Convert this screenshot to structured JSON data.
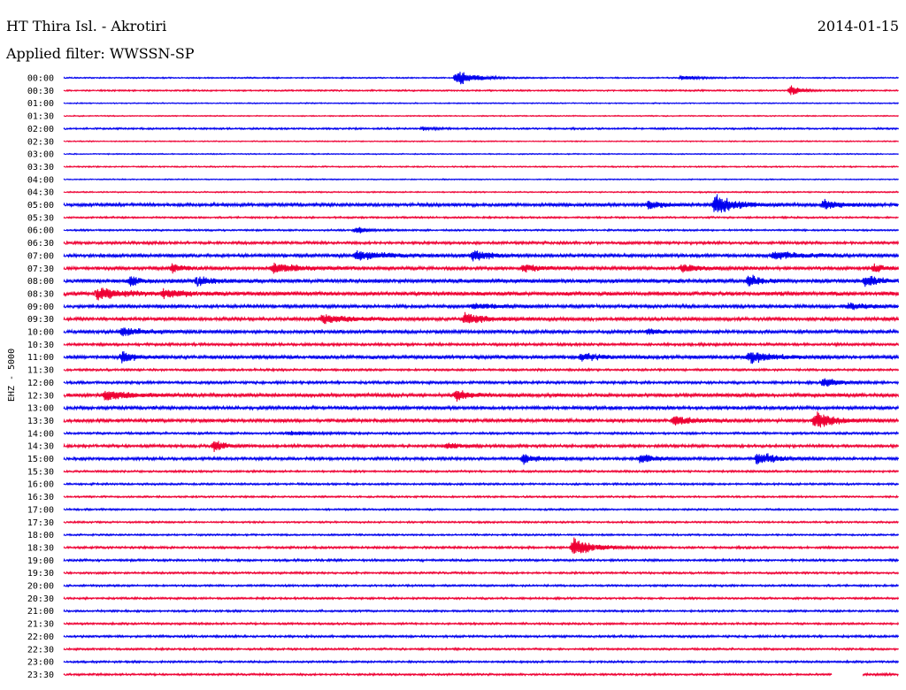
{
  "header": {
    "station": "HT Thira Isl. - Akrotiri",
    "date": "2014-01-15",
    "filter": "Applied filter: WWSSN-SP"
  },
  "colors": {
    "even": "#0000ee",
    "odd": "#ee0033"
  },
  "chart_data": {
    "type": "line",
    "channel_label": "EHZ - 5000",
    "rows": [
      {
        "time": "00:00",
        "noise": 0.6,
        "bursts": [
          {
            "t": 0.47,
            "a": 8,
            "d": 0.05
          },
          {
            "t": 0.74,
            "a": 2.5,
            "d": 0.04
          }
        ]
      },
      {
        "time": "00:30",
        "noise": 0.7,
        "bursts": [
          {
            "t": 0.87,
            "a": 5,
            "d": 0.03
          }
        ]
      },
      {
        "time": "01:00",
        "noise": 0.5,
        "bursts": []
      },
      {
        "time": "01:30",
        "noise": 0.5,
        "bursts": []
      },
      {
        "time": "02:00",
        "noise": 0.8,
        "bursts": [
          {
            "t": 0.43,
            "a": 2,
            "d": 0.03
          }
        ]
      },
      {
        "time": "02:30",
        "noise": 0.5,
        "bursts": []
      },
      {
        "time": "03:00",
        "noise": 0.5,
        "bursts": []
      },
      {
        "time": "03:30",
        "noise": 0.6,
        "bursts": []
      },
      {
        "time": "04:00",
        "noise": 0.5,
        "bursts": []
      },
      {
        "time": "04:30",
        "noise": 0.6,
        "bursts": []
      },
      {
        "time": "05:00",
        "noise": 1.5,
        "bursts": [
          {
            "t": 0.7,
            "a": 5,
            "d": 0.04
          },
          {
            "t": 0.78,
            "a": 11,
            "d": 0.05
          },
          {
            "t": 0.91,
            "a": 5,
            "d": 0.04
          }
        ]
      },
      {
        "time": "05:30",
        "noise": 0.8,
        "bursts": []
      },
      {
        "time": "06:00",
        "noise": 0.8,
        "bursts": [
          {
            "t": 0.35,
            "a": 4,
            "d": 0.03
          }
        ]
      },
      {
        "time": "06:30",
        "noise": 1.2,
        "bursts": []
      },
      {
        "time": "07:00",
        "noise": 1.5,
        "bursts": [
          {
            "t": 0.35,
            "a": 5,
            "d": 0.08
          },
          {
            "t": 0.49,
            "a": 6,
            "d": 0.04
          },
          {
            "t": 0.85,
            "a": 4,
            "d": 0.08
          }
        ]
      },
      {
        "time": "07:30",
        "noise": 1.5,
        "bursts": [
          {
            "t": 0.13,
            "a": 5,
            "d": 0.03
          },
          {
            "t": 0.25,
            "a": 5,
            "d": 0.08
          },
          {
            "t": 0.55,
            "a": 4,
            "d": 0.05
          },
          {
            "t": 0.74,
            "a": 4,
            "d": 0.05
          },
          {
            "t": 0.97,
            "a": 4,
            "d": 0.03
          }
        ]
      },
      {
        "time": "08:00",
        "noise": 1.8,
        "bursts": [
          {
            "t": 0.08,
            "a": 6,
            "d": 0.02
          },
          {
            "t": 0.16,
            "a": 6,
            "d": 0.03
          },
          {
            "t": 0.82,
            "a": 7,
            "d": 0.03
          },
          {
            "t": 0.96,
            "a": 7,
            "d": 0.03
          }
        ]
      },
      {
        "time": "08:30",
        "noise": 1.8,
        "bursts": [
          {
            "t": 0.04,
            "a": 6,
            "d": 0.07
          },
          {
            "t": 0.12,
            "a": 4,
            "d": 0.06
          }
        ]
      },
      {
        "time": "09:00",
        "noise": 1.5,
        "bursts": [
          {
            "t": 0.49,
            "a": 3,
            "d": 0.06
          },
          {
            "t": 0.94,
            "a": 3,
            "d": 0.06
          }
        ]
      },
      {
        "time": "09:30",
        "noise": 1.5,
        "bursts": [
          {
            "t": 0.31,
            "a": 5,
            "d": 0.07
          },
          {
            "t": 0.48,
            "a": 6,
            "d": 0.05
          }
        ]
      },
      {
        "time": "10:00",
        "noise": 1.5,
        "bursts": [
          {
            "t": 0.07,
            "a": 4,
            "d": 0.06
          },
          {
            "t": 0.7,
            "a": 3,
            "d": 0.03
          }
        ]
      },
      {
        "time": "10:30",
        "noise": 1.2,
        "bursts": []
      },
      {
        "time": "11:00",
        "noise": 1.6,
        "bursts": [
          {
            "t": 0.07,
            "a": 6,
            "d": 0.03
          },
          {
            "t": 0.62,
            "a": 5,
            "d": 0.04
          },
          {
            "t": 0.82,
            "a": 6,
            "d": 0.06
          }
        ]
      },
      {
        "time": "11:30",
        "noise": 1.0,
        "bursts": []
      },
      {
        "time": "12:00",
        "noise": 1.2,
        "bursts": [
          {
            "t": 0.91,
            "a": 5,
            "d": 0.04
          }
        ]
      },
      {
        "time": "12:30",
        "noise": 1.6,
        "bursts": [
          {
            "t": 0.05,
            "a": 6,
            "d": 0.06
          },
          {
            "t": 0.47,
            "a": 7,
            "d": 0.03
          }
        ]
      },
      {
        "time": "13:00",
        "noise": 1.5,
        "bursts": []
      },
      {
        "time": "13:30",
        "noise": 1.5,
        "bursts": [
          {
            "t": 0.73,
            "a": 5,
            "d": 0.05
          },
          {
            "t": 0.9,
            "a": 9,
            "d": 0.05
          }
        ]
      },
      {
        "time": "14:00",
        "noise": 1.0,
        "bursts": [
          {
            "t": 0.27,
            "a": 2,
            "d": 0.06
          }
        ]
      },
      {
        "time": "14:30",
        "noise": 1.3,
        "bursts": [
          {
            "t": 0.18,
            "a": 6,
            "d": 0.03
          },
          {
            "t": 0.46,
            "a": 3,
            "d": 0.04
          }
        ]
      },
      {
        "time": "15:00",
        "noise": 1.3,
        "bursts": [
          {
            "t": 0.55,
            "a": 6,
            "d": 0.03
          },
          {
            "t": 0.69,
            "a": 5,
            "d": 0.04
          },
          {
            "t": 0.83,
            "a": 7,
            "d": 0.05
          }
        ]
      },
      {
        "time": "15:30",
        "noise": 0.9,
        "bursts": []
      },
      {
        "time": "16:00",
        "noise": 0.9,
        "bursts": []
      },
      {
        "time": "16:30",
        "noise": 0.8,
        "bursts": []
      },
      {
        "time": "17:00",
        "noise": 0.8,
        "bursts": []
      },
      {
        "time": "17:30",
        "noise": 0.8,
        "bursts": []
      },
      {
        "time": "18:00",
        "noise": 0.8,
        "bursts": []
      },
      {
        "time": "18:30",
        "noise": 1.0,
        "bursts": [
          {
            "t": 0.61,
            "a": 11,
            "d": 0.05
          }
        ]
      },
      {
        "time": "19:00",
        "noise": 1.0,
        "bursts": []
      },
      {
        "time": "19:30",
        "noise": 0.9,
        "bursts": []
      },
      {
        "time": "20:00",
        "noise": 0.9,
        "bursts": []
      },
      {
        "time": "20:30",
        "noise": 0.9,
        "bursts": []
      },
      {
        "time": "21:00",
        "noise": 0.9,
        "bursts": []
      },
      {
        "time": "21:30",
        "noise": 0.9,
        "bursts": []
      },
      {
        "time": "22:00",
        "noise": 1.0,
        "bursts": []
      },
      {
        "time": "22:30",
        "noise": 0.9,
        "bursts": []
      },
      {
        "time": "23:00",
        "noise": 0.9,
        "bursts": []
      },
      {
        "time": "23:30",
        "noise": 0.9,
        "bursts": [],
        "end": 0.92
      }
    ]
  }
}
